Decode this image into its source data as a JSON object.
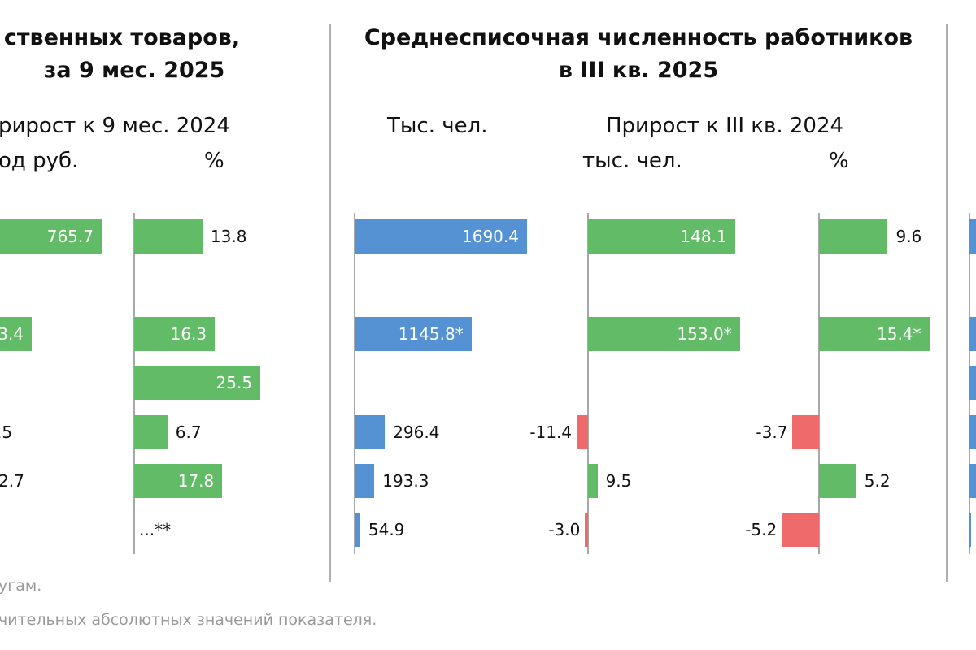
{
  "colors": {
    "blue": "#5592d3",
    "green": "#62bb66",
    "red": "#ef6b6b"
  },
  "left_panel": {
    "title_line1": "ственных товаров,",
    "title_line2": "за 9 мес. 2025",
    "subtitle": "рирост к 9 мес. 2024",
    "unit_abs": "од руб.",
    "unit_pct": "%"
  },
  "middle_panel": {
    "title_line1": "Среднесписочная численность работников",
    "title_line2": "в III кв. 2025",
    "col_total": "Тыс. чел.",
    "col_growth": "Прирост к III кв. 2024",
    "unit_abs": "тыс. чел.",
    "unit_pct": "%"
  },
  "footnotes": [
    "угам.",
    "чительных абсолютных значений показателя."
  ],
  "chart_data": [
    {
      "type": "bar",
      "orientation": "horizontal",
      "panel": "left-growth-abs",
      "color": "green",
      "values": [
        765.7,
        null,
        "3.4",
        null,
        ".5",
        "2.7",
        null
      ],
      "labels": [
        "765.7",
        "",
        "3.4",
        "",
        ".5",
        "2.7",
        ""
      ]
    },
    {
      "type": "bar",
      "orientation": "horizontal",
      "panel": "left-growth-pct",
      "color": "green",
      "values": [
        13.8,
        null,
        16.3,
        25.5,
        6.7,
        17.8,
        null
      ],
      "labels": [
        "13.8",
        "",
        "16.3",
        "25.5",
        "6.7",
        "17.8",
        "...**"
      ]
    },
    {
      "type": "bar",
      "orientation": "horizontal",
      "panel": "middle-total",
      "color": "blue",
      "values": [
        1690.4,
        null,
        1145.8,
        null,
        296.4,
        193.3,
        54.9
      ],
      "labels": [
        "1690.4",
        "",
        "1145.8*",
        "",
        "296.4",
        "193.3",
        "54.9"
      ]
    },
    {
      "type": "bar",
      "orientation": "horizontal",
      "panel": "middle-growth-abs",
      "values": [
        148.1,
        null,
        153.0,
        null,
        -11.4,
        9.5,
        -3.0
      ],
      "labels": [
        "148.1",
        "",
        "153.0*",
        "",
        "-11.4",
        "9.5",
        "-3.0"
      ]
    },
    {
      "type": "bar",
      "orientation": "horizontal",
      "panel": "middle-growth-pct",
      "values": [
        9.6,
        null,
        15.4,
        null,
        -3.7,
        5.2,
        -5.2
      ],
      "labels": [
        "9.6",
        "",
        "15.4*",
        "",
        "-3.7",
        "5.2",
        "-5.2"
      ]
    }
  ]
}
